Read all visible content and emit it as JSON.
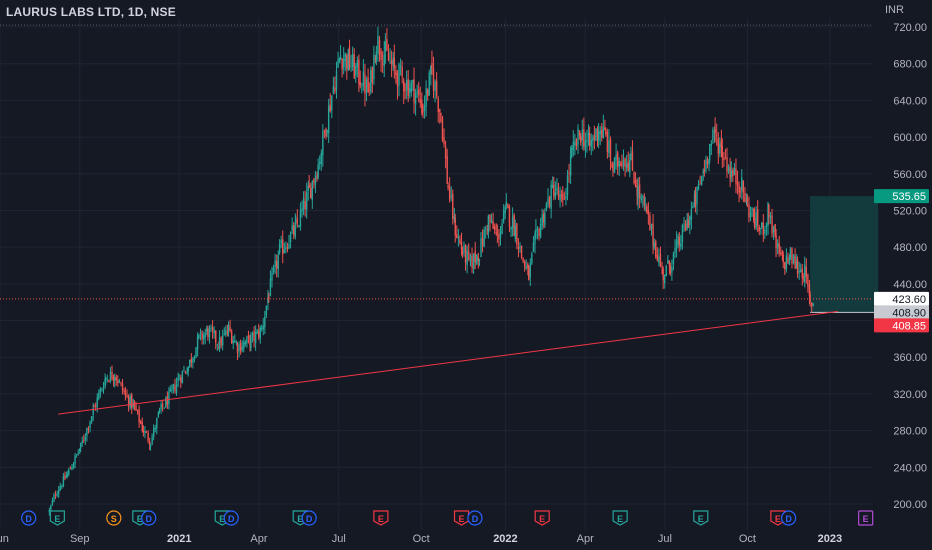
{
  "header": {
    "symbol_title": "LAURUS LABS LTD, 1D, NSE",
    "currency": "INR"
  },
  "colors": {
    "background": "#151924",
    "up": "#26a69a",
    "down": "#ef5350",
    "grid": "#1f2433",
    "axis_text": "#b2b5be",
    "trendline": "#f23645",
    "target_zone": "#133c3e",
    "event_earnings": "#f23645",
    "event_dividend": "#2962ff",
    "event_split": "#f7931a"
  },
  "chart_data": {
    "type": "candlestick",
    "title": "LAURUS LABS LTD, 1D, NSE",
    "ylabel": "INR",
    "ylim": [
      175,
      732
    ],
    "y_ticks": [
      200,
      240,
      280,
      320,
      360,
      400,
      440,
      480,
      520,
      560,
      600,
      640,
      680,
      720
    ],
    "x_ticks": [
      {
        "label": "Jun",
        "bold": false,
        "t": 0
      },
      {
        "label": "Sep",
        "bold": false,
        "t": 89
      },
      {
        "label": "2021",
        "bold": true,
        "t": 200
      },
      {
        "label": "Apr",
        "bold": false,
        "t": 289
      },
      {
        "label": "Jul",
        "bold": false,
        "t": 378
      },
      {
        "label": "Oct",
        "bold": false,
        "t": 470
      },
      {
        "label": "2022",
        "bold": true,
        "t": 564
      },
      {
        "label": "Apr",
        "bold": false,
        "t": 653
      },
      {
        "label": "Jul",
        "bold": false,
        "t": 742
      },
      {
        "label": "Oct",
        "bold": false,
        "t": 834
      },
      {
        "label": "2023",
        "bold": true,
        "t": 926
      }
    ],
    "x_range": [
      0,
      1040
    ],
    "price_anchors": [
      [
        55,
        192
      ],
      [
        62,
        212
      ],
      [
        75,
        232
      ],
      [
        90,
        262
      ],
      [
        105,
        305
      ],
      [
        118,
        338
      ],
      [
        128,
        342
      ],
      [
        140,
        318
      ],
      [
        150,
        305
      ],
      [
        160,
        280
      ],
      [
        168,
        268
      ],
      [
        178,
        300
      ],
      [
        190,
        318
      ],
      [
        200,
        338
      ],
      [
        210,
        350
      ],
      [
        222,
        380
      ],
      [
        232,
        388
      ],
      [
        245,
        375
      ],
      [
        255,
        390
      ],
      [
        265,
        372
      ],
      [
        280,
        378
      ],
      [
        292,
        390
      ],
      [
        300,
        430
      ],
      [
        312,
        475
      ],
      [
        330,
        500
      ],
      [
        345,
        540
      ],
      [
        355,
        570
      ],
      [
        365,
        620
      ],
      [
        372,
        655
      ],
      [
        380,
        690
      ],
      [
        390,
        682
      ],
      [
        402,
        665
      ],
      [
        412,
        648
      ],
      [
        420,
        705
      ],
      [
        430,
        690
      ],
      [
        440,
        672
      ],
      [
        452,
        660
      ],
      [
        462,
        652
      ],
      [
        472,
        632
      ],
      [
        482,
        670
      ],
      [
        492,
        625
      ],
      [
        500,
        545
      ],
      [
        508,
        500
      ],
      [
        516,
        475
      ],
      [
        525,
        462
      ],
      [
        535,
        475
      ],
      [
        545,
        510
      ],
      [
        555,
        490
      ],
      [
        565,
        520
      ],
      [
        575,
        500
      ],
      [
        582,
        470
      ],
      [
        590,
        448
      ],
      [
        598,
        490
      ],
      [
        608,
        520
      ],
      [
        618,
        545
      ],
      [
        628,
        525
      ],
      [
        638,
        580
      ],
      [
        648,
        605
      ],
      [
        658,
        590
      ],
      [
        668,
        610
      ],
      [
        676,
        600
      ],
      [
        684,
        565
      ],
      [
        694,
        580
      ],
      [
        704,
        572
      ],
      [
        712,
        540
      ],
      [
        720,
        520
      ],
      [
        730,
        485
      ],
      [
        740,
        450
      ],
      [
        748,
        462
      ],
      [
        758,
        485
      ],
      [
        768,
        510
      ],
      [
        776,
        530
      ],
      [
        786,
        568
      ],
      [
        792,
        590
      ],
      [
        798,
        602
      ],
      [
        806,
        585
      ],
      [
        816,
        560
      ],
      [
        826,
        550
      ],
      [
        834,
        525
      ],
      [
        842,
        510
      ],
      [
        850,
        498
      ],
      [
        858,
        520
      ],
      [
        866,
        480
      ],
      [
        874,
        462
      ],
      [
        882,
        470
      ],
      [
        890,
        458
      ],
      [
        898,
        452
      ],
      [
        904,
        418
      ],
      [
        908,
        420
      ]
    ],
    "last_price": "423.60",
    "price_labels": [
      {
        "text": "535.65",
        "value": 535.65,
        "bg": "#089981",
        "fg": "#ffffff"
      },
      {
        "text": "423.60",
        "value": 423.6,
        "bg": "#ffffff",
        "fg": "#131722"
      },
      {
        "text": "408.90",
        "value": 408.9,
        "bg": "#c8cad1",
        "fg": "#131722"
      },
      {
        "text": "408.85",
        "value": 408.85,
        "bg": "#f23645",
        "fg": "#ffffff"
      }
    ],
    "trendline": {
      "from": [
        65,
        298
      ],
      "to": [
        935,
        410
      ]
    },
    "target_zone": {
      "t_start": 904,
      "t_end": 980,
      "top": 535.65,
      "bottom": 408.9
    },
    "events": [
      {
        "t": 32,
        "letter": "D",
        "kind": "dividend"
      },
      {
        "t": 64,
        "letter": "E",
        "kind": "earnings-up"
      },
      {
        "t": 127,
        "letter": "S",
        "kind": "split"
      },
      {
        "t": 156,
        "letter": "E",
        "kind": "earnings-up"
      },
      {
        "t": 166,
        "letter": "D",
        "kind": "dividend"
      },
      {
        "t": 248,
        "letter": "E",
        "kind": "earnings-up"
      },
      {
        "t": 258,
        "letter": "D",
        "kind": "dividend"
      },
      {
        "t": 335,
        "letter": "E",
        "kind": "earnings-up"
      },
      {
        "t": 345,
        "letter": "D",
        "kind": "dividend"
      },
      {
        "t": 425,
        "letter": "E",
        "kind": "earnings-down"
      },
      {
        "t": 515,
        "letter": "E",
        "kind": "earnings-down"
      },
      {
        "t": 530,
        "letter": "D",
        "kind": "dividend"
      },
      {
        "t": 605,
        "letter": "E",
        "kind": "earnings-down"
      },
      {
        "t": 692,
        "letter": "E",
        "kind": "earnings-up"
      },
      {
        "t": 782,
        "letter": "E",
        "kind": "earnings-up"
      },
      {
        "t": 868,
        "letter": "E",
        "kind": "earnings-down"
      },
      {
        "t": 880,
        "letter": "D",
        "kind": "dividend"
      },
      {
        "t": 966,
        "letter": "E",
        "kind": "earnings-future"
      }
    ]
  }
}
